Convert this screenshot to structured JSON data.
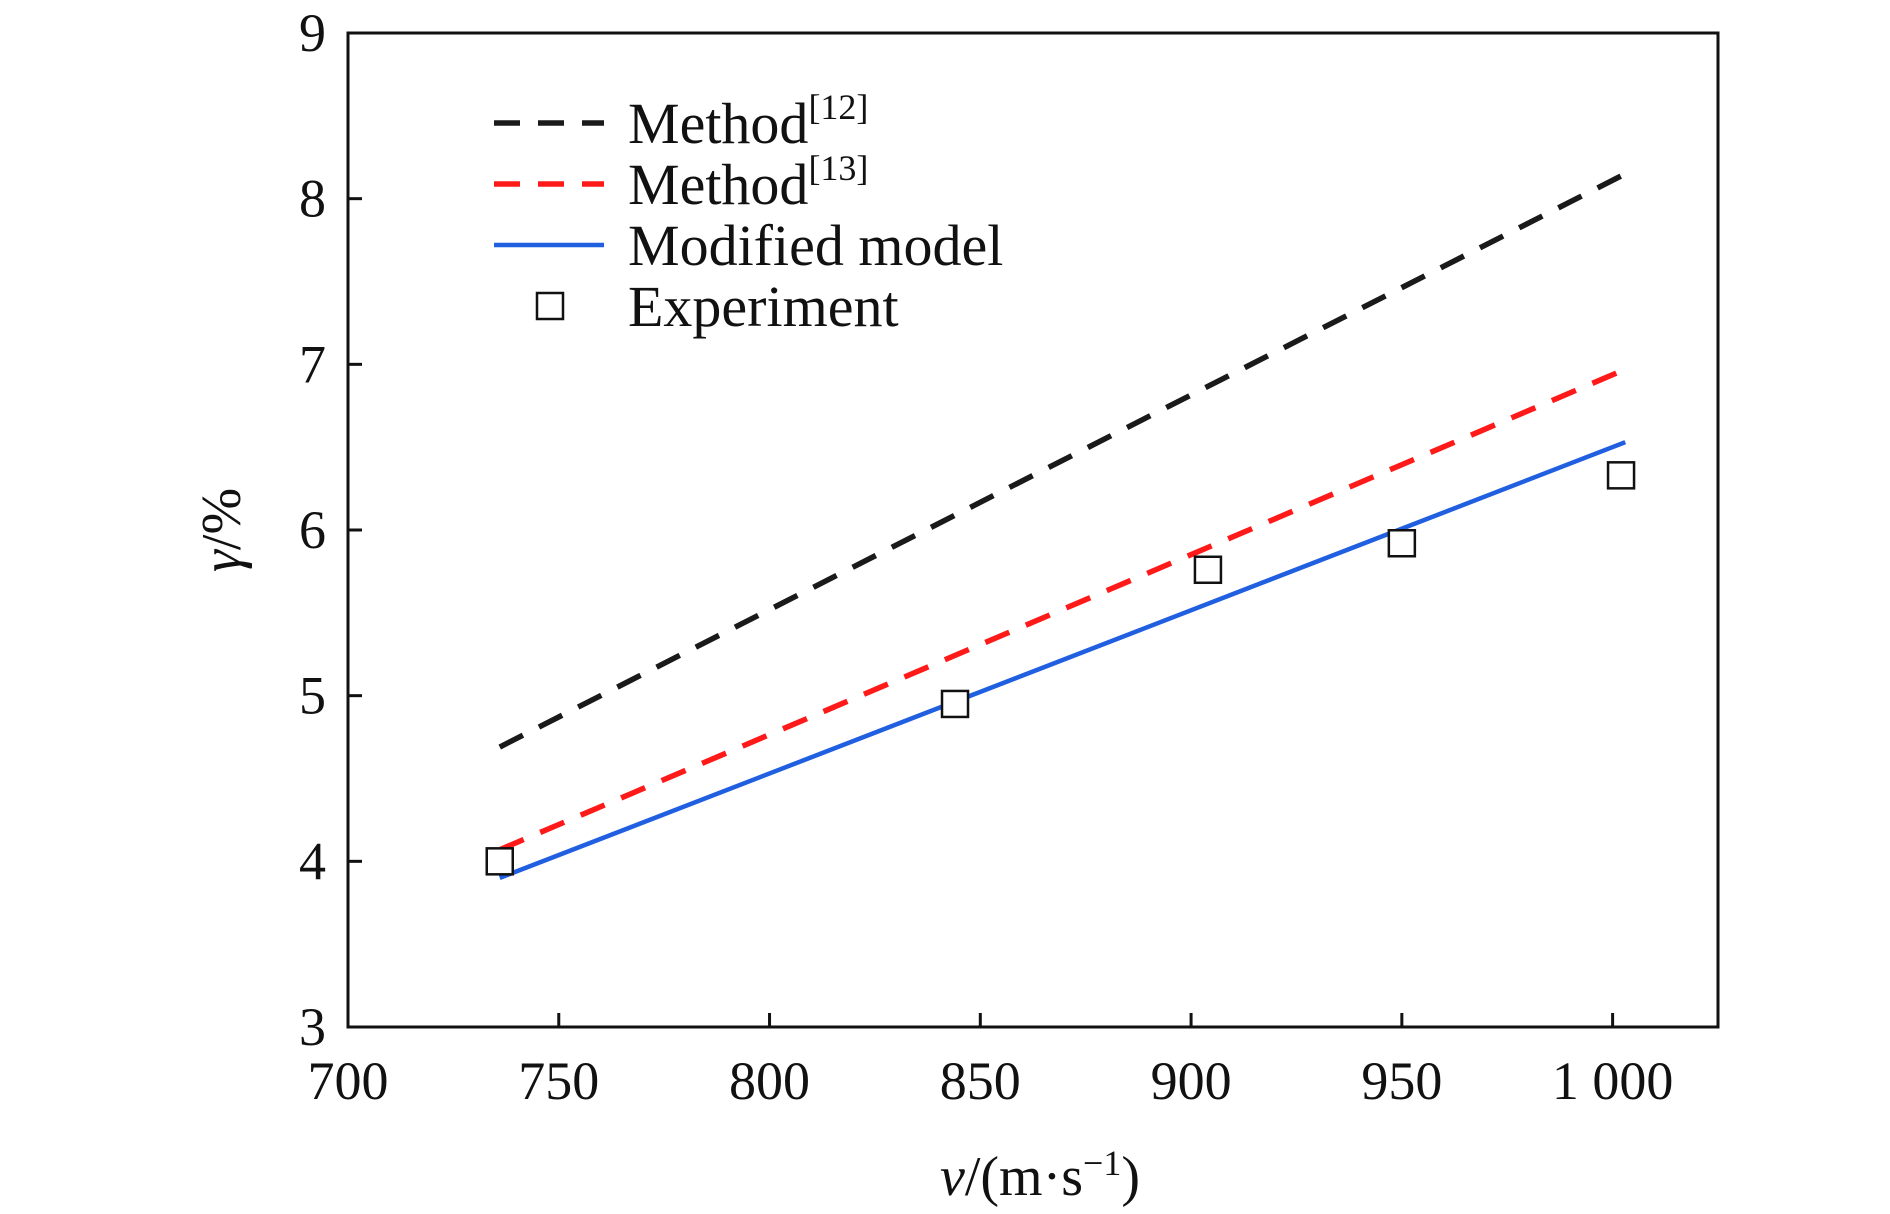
{
  "chart_data": {
    "type": "line",
    "xlabel": {
      "var": "v",
      "rest": "/(m·s",
      "sup": "−1",
      "close": ")"
    },
    "ylabel": {
      "var": "γ",
      "rest": "/%"
    },
    "xlim": [
      700,
      1025
    ],
    "ylim": [
      3,
      9
    ],
    "xticks": [
      700,
      750,
      800,
      850,
      900,
      950,
      1000
    ],
    "xtick_labels": [
      "700",
      "750",
      "800",
      "850",
      "900",
      "950",
      "1 000"
    ],
    "yticks": [
      3,
      4,
      5,
      6,
      7,
      8,
      9
    ],
    "ytick_labels": [
      "3",
      "4",
      "5",
      "6",
      "7",
      "8",
      "9"
    ],
    "grid": false,
    "legend_position": "top-left",
    "series": [
      {
        "name": "Method",
        "name_sup": "[12]",
        "style": "dashed",
        "color": "#1a1a1a",
        "x": [
          736,
          1003
        ],
        "y": [
          4.69,
          8.15
        ]
      },
      {
        "name": "Method",
        "name_sup": "[13]",
        "style": "dashed",
        "color": "#ff1a1a",
        "x": [
          736,
          1003
        ],
        "y": [
          4.07,
          6.97
        ]
      },
      {
        "name": "Modified model",
        "name_sup": "",
        "style": "solid",
        "color": "#1f5fe0",
        "x": [
          736,
          1003
        ],
        "y": [
          3.9,
          6.53
        ]
      },
      {
        "name": "Experiment",
        "name_sup": "",
        "style": "marker-square",
        "color": "#111111",
        "x": [
          736,
          844,
          904,
          950,
          1002
        ],
        "y": [
          4.0,
          4.95,
          5.76,
          5.92,
          6.33
        ]
      }
    ]
  }
}
